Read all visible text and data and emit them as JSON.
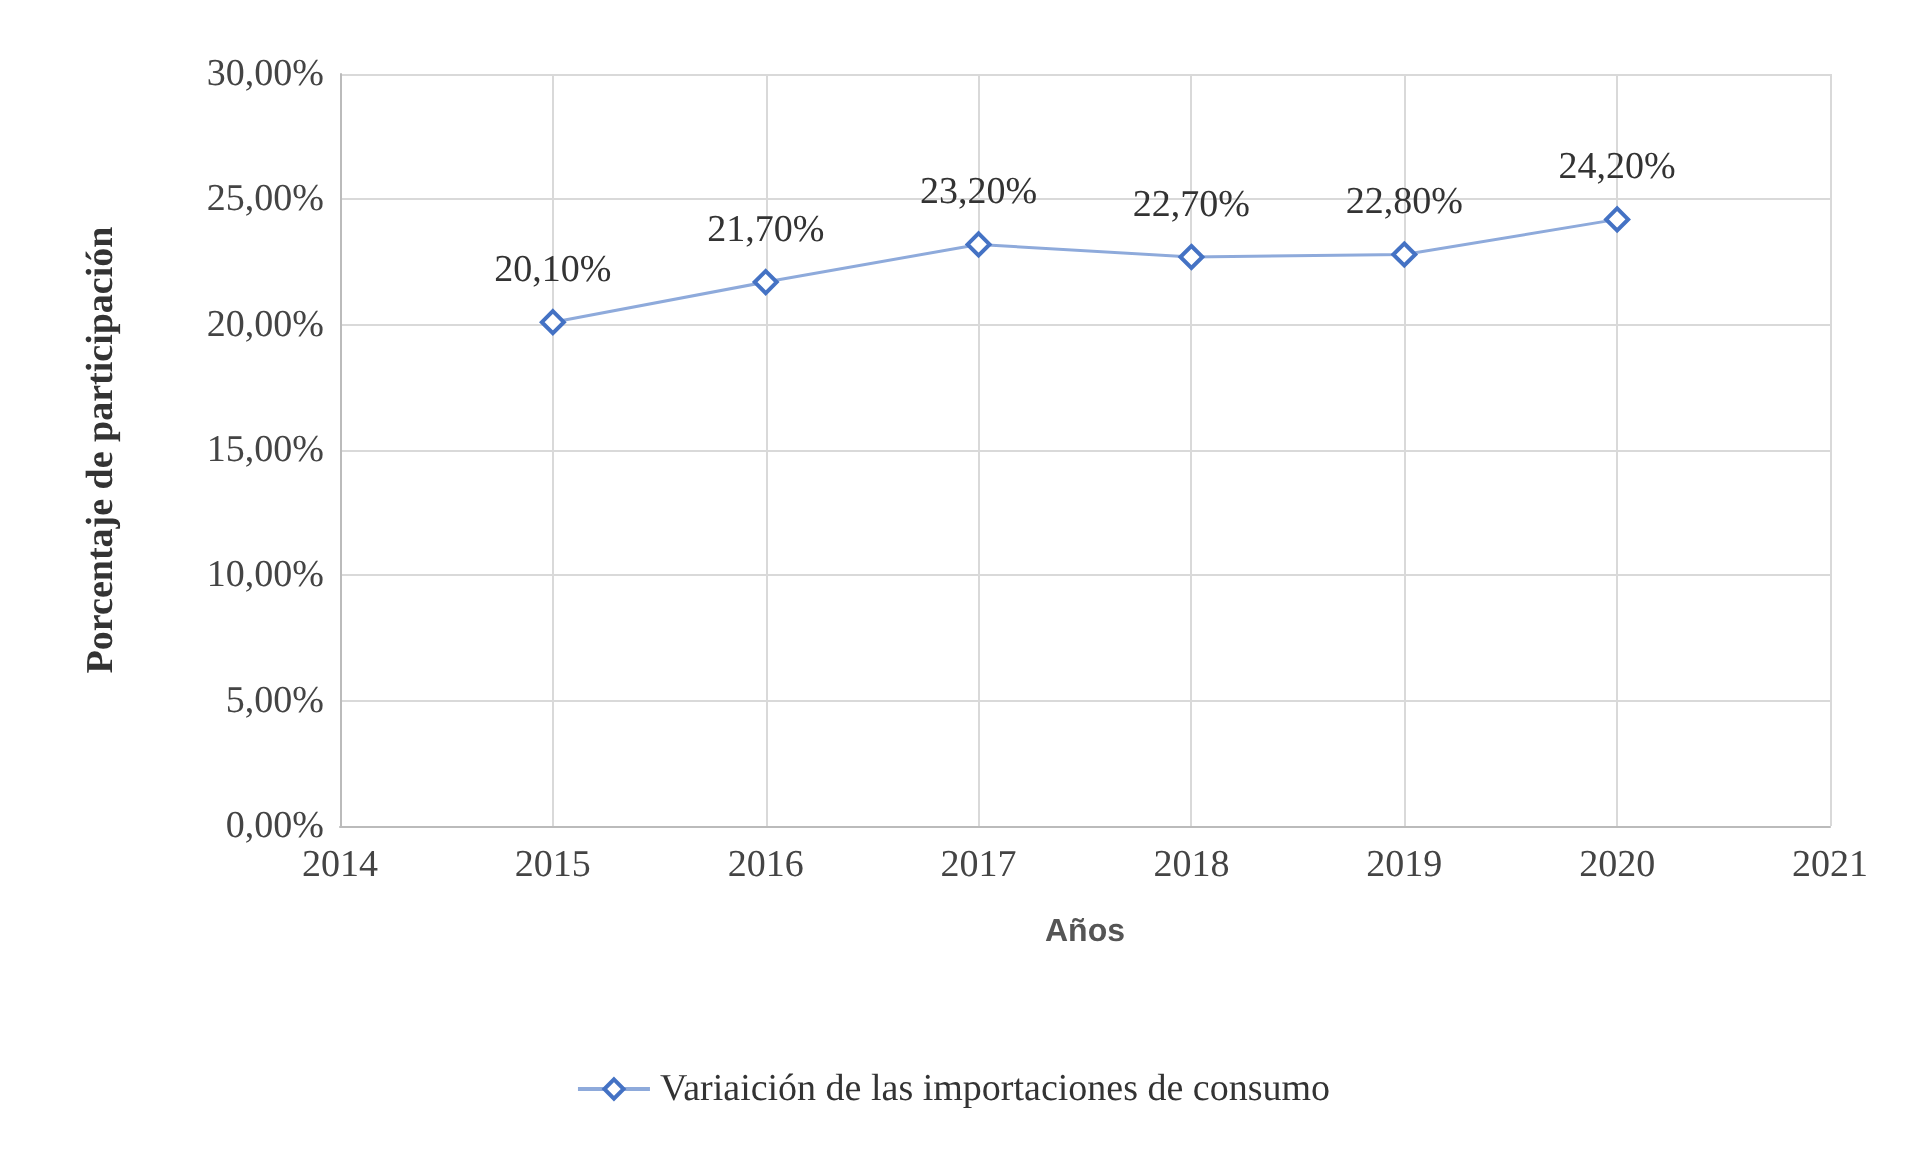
{
  "chart_data": {
    "type": "line",
    "xlabel": "Años",
    "ylabel": "Porcentaje de participación",
    "x": [
      2015,
      2016,
      2017,
      2018,
      2019,
      2020
    ],
    "series": [
      {
        "name": "Variaición de las importaciones de consumo",
        "color": "#4472c4",
        "values": [
          20.1,
          21.7,
          23.2,
          22.7,
          22.8,
          24.2
        ],
        "value_labels": [
          "20,10%",
          "21,70%",
          "23,20%",
          "22,70%",
          "22,80%",
          "24,20%"
        ]
      }
    ],
    "xlim": [
      2014,
      2021
    ],
    "xticks": [
      2014,
      2015,
      2016,
      2017,
      2018,
      2019,
      2020,
      2021
    ],
    "ylim": [
      0,
      30
    ],
    "yticks": [
      {
        "value": 0,
        "label": "0,00%"
      },
      {
        "value": 5,
        "label": "5,00%"
      },
      {
        "value": 10,
        "label": "10,00%"
      },
      {
        "value": 15,
        "label": "15,00%"
      },
      {
        "value": 20,
        "label": "20,00%"
      },
      {
        "value": 25,
        "label": "25,00%"
      },
      {
        "value": 30,
        "label": "30,00%"
      }
    ],
    "grid": true,
    "legend": "bottom",
    "marker": "diamond",
    "line_style": "solid"
  }
}
